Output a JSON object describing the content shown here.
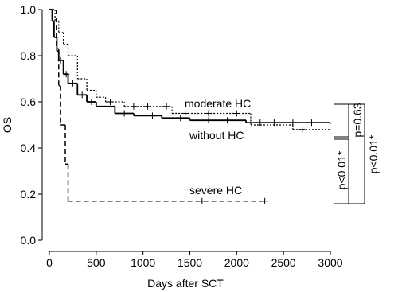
{
  "chart_data": {
    "type": "step",
    "xlabel": "Days after SCT",
    "ylabel": "OS",
    "xlim": [
      0,
      3000
    ],
    "ylim": [
      0,
      1
    ],
    "xticks": [
      0,
      500,
      1000,
      1500,
      2000,
      2500,
      3000
    ],
    "yticks": [
      {
        "value": 0,
        "label": "0.0"
      },
      {
        "value": 0.2,
        "label": "0.2"
      },
      {
        "value": 0.4,
        "label": "0.4"
      },
      {
        "value": 0.6,
        "label": "0.6"
      },
      {
        "value": 0.8,
        "label": "0.8"
      },
      {
        "value": 1,
        "label": "1.0"
      }
    ],
    "series": [
      {
        "name": "without HC",
        "color": "#000000",
        "dash": "none",
        "width": 1.8,
        "x": [
          0,
          30,
          50,
          80,
          100,
          150,
          200,
          300,
          400,
          500,
          700,
          900,
          1200,
          1500,
          2100,
          3000
        ],
        "values": [
          1.0,
          0.95,
          0.88,
          0.82,
          0.78,
          0.72,
          0.68,
          0.63,
          0.6,
          0.58,
          0.55,
          0.54,
          0.53,
          0.52,
          0.51,
          0.505
        ],
        "censor_x": [
          120,
          180,
          250,
          350,
          450,
          800,
          1100,
          1400,
          1700,
          1900,
          2250,
          2400,
          2600,
          2800
        ],
        "censor_y": [
          0.78,
          0.72,
          0.68,
          0.63,
          0.6,
          0.55,
          0.54,
          0.53,
          0.52,
          0.52,
          0.51,
          0.51,
          0.51,
          0.51
        ]
      },
      {
        "name": "moderate HC",
        "color": "#000000",
        "dash": "2,2",
        "width": 1.2,
        "x": [
          0,
          60,
          100,
          150,
          200,
          300,
          400,
          500,
          600,
          800,
          1310,
          2150,
          2600,
          3000
        ],
        "values": [
          1.0,
          0.95,
          0.9,
          0.85,
          0.8,
          0.7,
          0.65,
          0.62,
          0.6,
          0.58,
          0.55,
          0.5,
          0.48,
          0.48
        ],
        "censor_x": [
          650,
          900,
          1050,
          1250,
          1450,
          1700,
          2000,
          2700
        ],
        "censor_y": [
          0.6,
          0.58,
          0.58,
          0.58,
          0.55,
          0.55,
          0.55,
          0.48
        ]
      },
      {
        "name": "severe HC",
        "color": "#000000",
        "dash": "6,4",
        "width": 1.5,
        "x": [
          0,
          75,
          100,
          120,
          170,
          200,
          2300
        ],
        "values": [
          1.0,
          0.83,
          0.67,
          0.5,
          0.33,
          0.17,
          0.17
        ],
        "censor_x": [
          1630,
          2300
        ],
        "censor_y": [
          0.17,
          0.17
        ]
      }
    ],
    "annotations": [
      "moderate HC",
      "without HC",
      "severe HC",
      "p=0.63",
      "p<0.01*",
      "p<0.01*"
    ]
  }
}
